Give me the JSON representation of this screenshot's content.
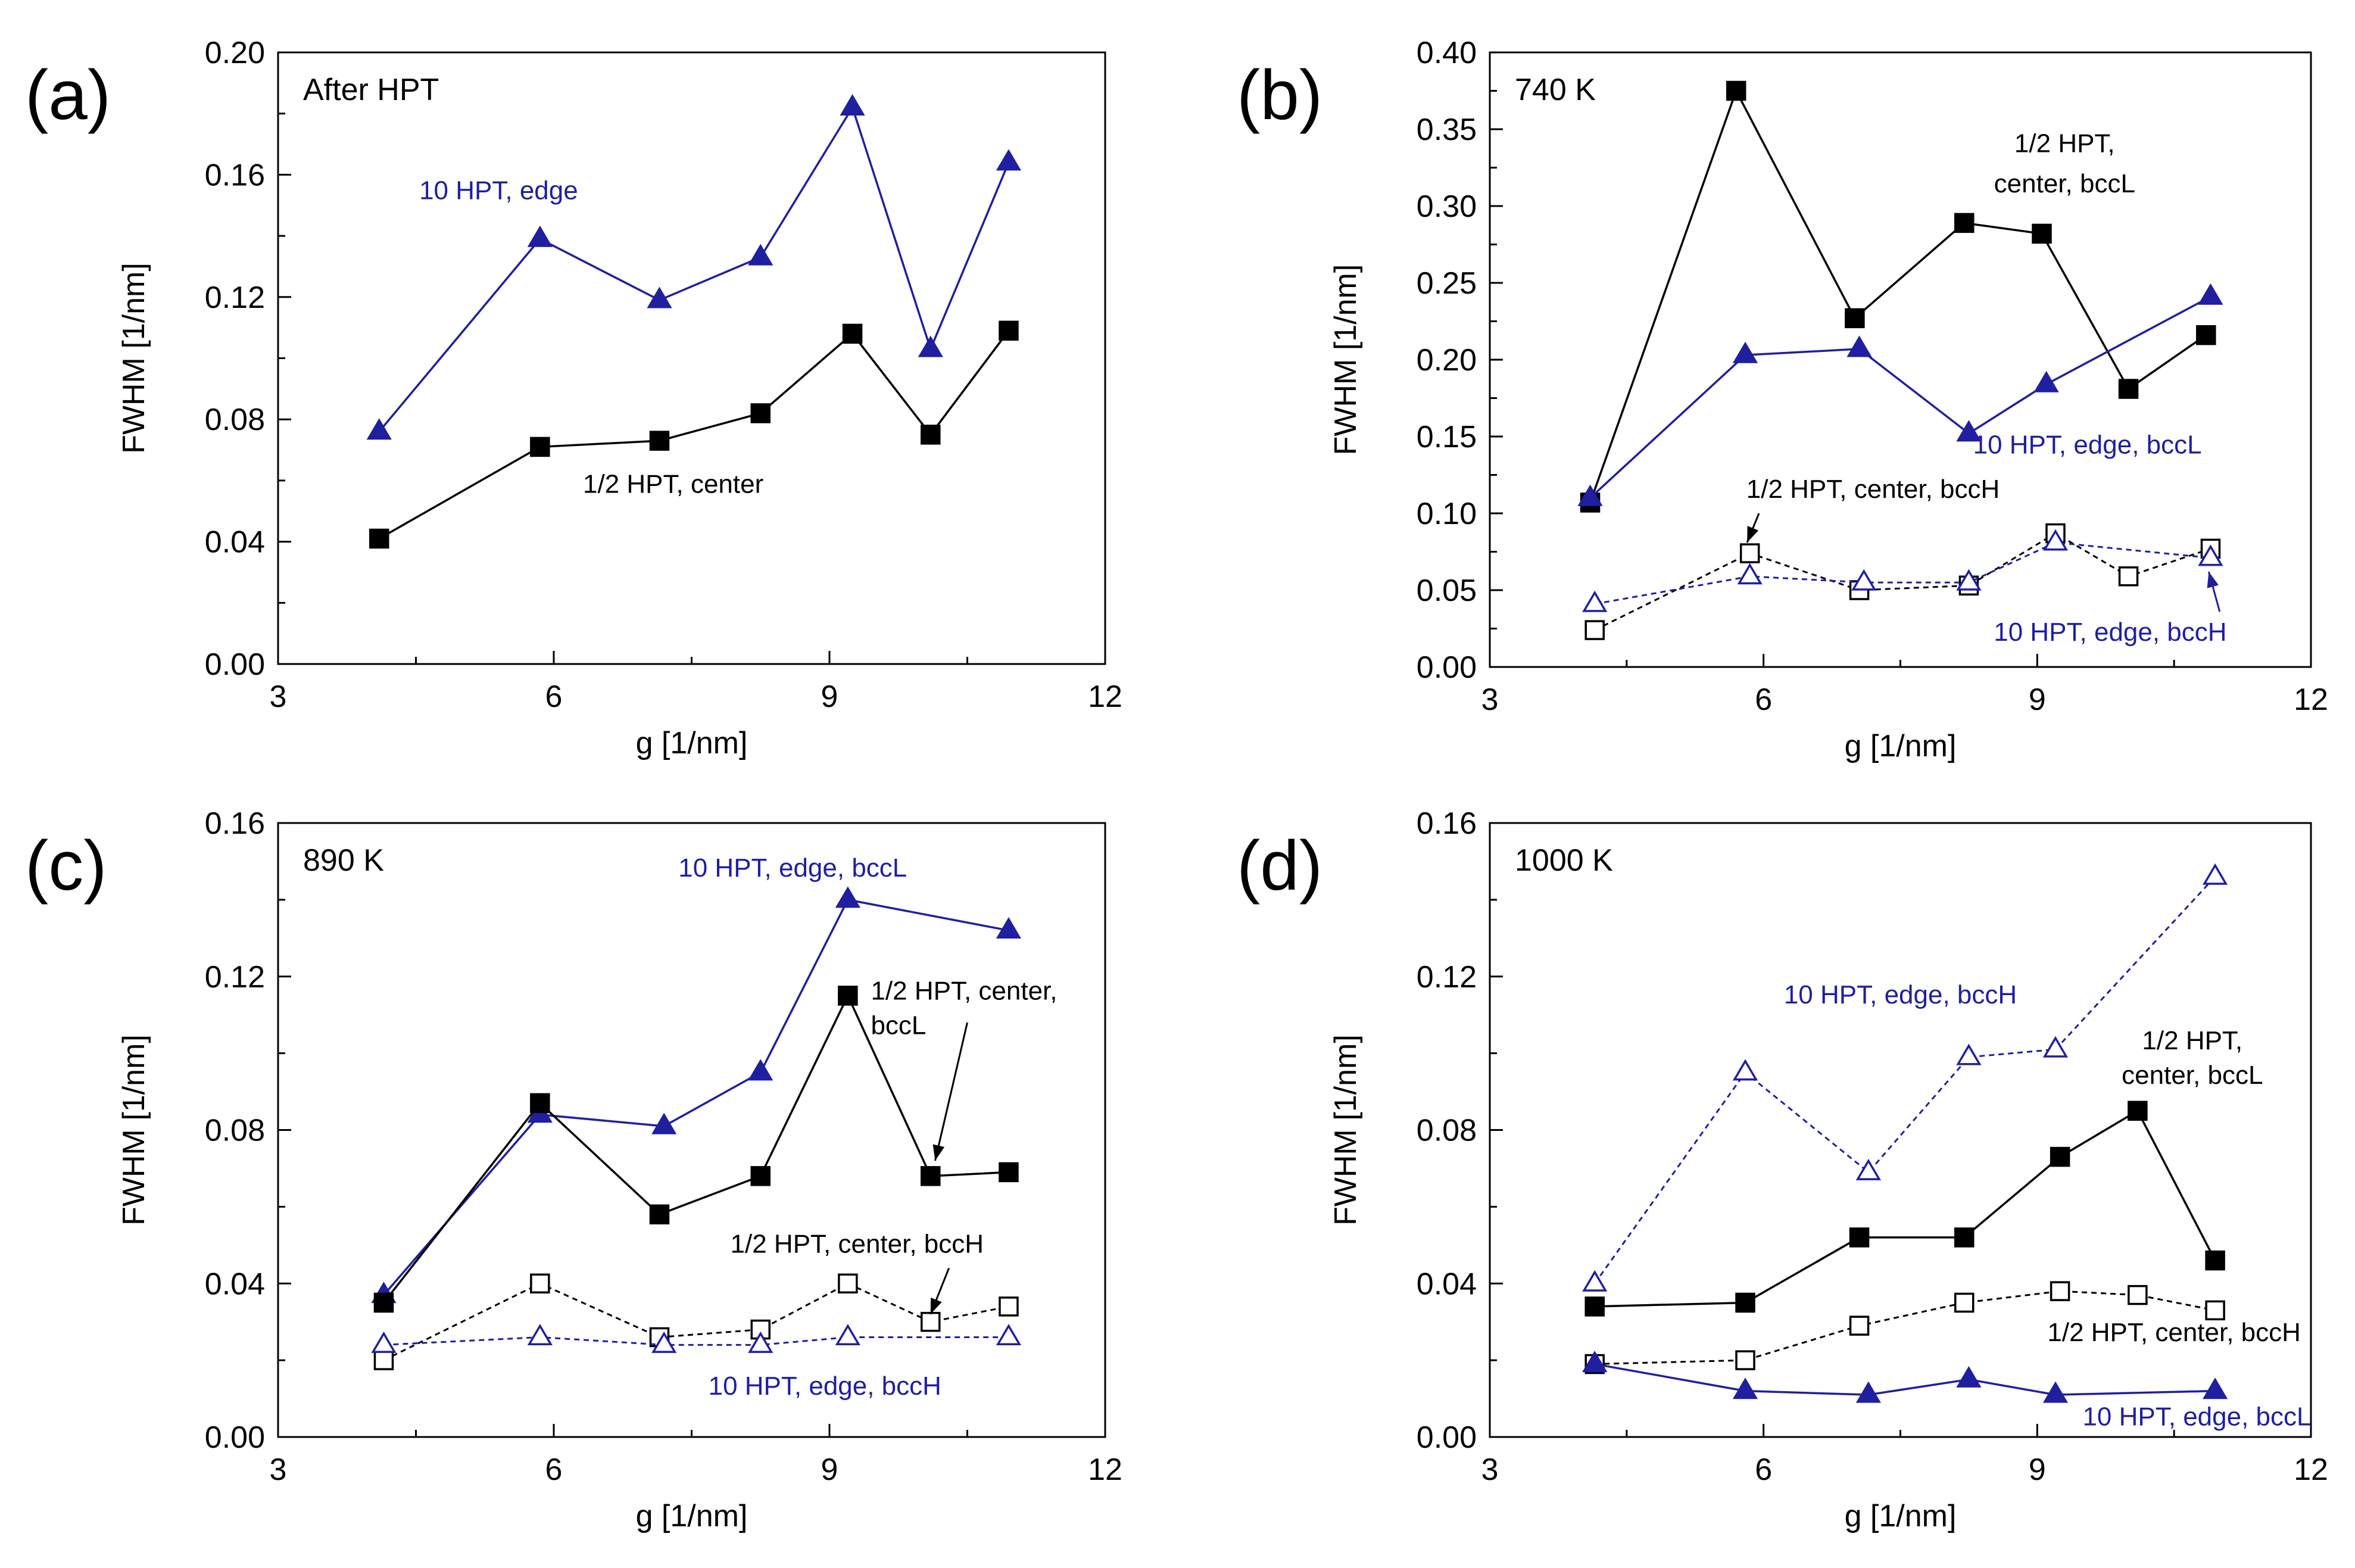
{
  "colors": {
    "blue": "#1f1fa0",
    "black": "#000000"
  },
  "chart_data": [
    {
      "type": "line",
      "panel_label": "(a)",
      "condition": "After HPT",
      "xlabel": "g [1/nm]",
      "ylabel": "FWHM [1/nm]",
      "xlim": [
        3,
        12
      ],
      "ylim": [
        0,
        0.2
      ],
      "xticks": [
        3,
        6,
        9,
        12
      ],
      "yticks": [
        0,
        0.04,
        0.08,
        0.12,
        0.16,
        0.2
      ],
      "ytick_decimals": 2,
      "series": [
        {
          "name": "10 HPT, edge",
          "marker": "triangle",
          "filled": true,
          "dashed": false,
          "color": "#1f1fa0",
          "x": [
            4.1,
            5.85,
            7.15,
            8.25,
            9.25,
            10.1,
            10.95
          ],
          "y": [
            0.076,
            0.139,
            0.119,
            0.133,
            0.182,
            0.103,
            0.164
          ]
        },
        {
          "name": "1/2 HPT, center",
          "marker": "square",
          "filled": true,
          "dashed": false,
          "color": "#000000",
          "x": [
            4.1,
            5.85,
            7.15,
            8.25,
            9.25,
            10.1,
            10.95
          ],
          "y": [
            0.041,
            0.071,
            0.073,
            0.082,
            0.108,
            0.075,
            0.109
          ]
        }
      ],
      "annotations": [
        {
          "text": "10 HPT, edge",
          "x": 5.4,
          "y": 0.152,
          "color": "#1f1fa0",
          "anchor": "middle"
        },
        {
          "text": "1/2 HPT, center",
          "x": 7.3,
          "y": 0.056,
          "color": "#000000",
          "anchor": "middle"
        }
      ]
    },
    {
      "type": "line",
      "panel_label": "(b)",
      "condition": "740 K",
      "xlabel": "g [1/nm]",
      "ylabel": "FWHM [1/nm]",
      "xlim": [
        3,
        12
      ],
      "ylim": [
        0,
        0.4
      ],
      "xticks": [
        3,
        6,
        9,
        12
      ],
      "yticks": [
        0,
        0.05,
        0.1,
        0.15,
        0.2,
        0.25,
        0.3,
        0.35,
        0.4
      ],
      "ytick_decimals": 2,
      "series": [
        {
          "name": "1/2 HPT, center, bccL",
          "marker": "square",
          "filled": true,
          "dashed": false,
          "color": "#000000",
          "x": [
            4.1,
            5.7,
            7.0,
            8.2,
            9.05,
            10.0,
            10.85
          ],
          "y": [
            0.107,
            0.375,
            0.227,
            0.289,
            0.282,
            0.181,
            0.216
          ]
        },
        {
          "name": "10 HPT, edge, bccL",
          "marker": "triangle",
          "filled": true,
          "dashed": false,
          "color": "#1f1fa0",
          "x": [
            4.1,
            5.8,
            7.05,
            8.25,
            9.1,
            10.9
          ],
          "y": [
            0.11,
            0.203,
            0.207,
            0.152,
            0.184,
            0.241
          ]
        },
        {
          "name": "1/2 HPT, center, bccH",
          "marker": "square",
          "filled": false,
          "dashed": true,
          "color": "#000000",
          "x": [
            4.15,
            5.85,
            7.05,
            8.25,
            9.2,
            10.0,
            10.9
          ],
          "y": [
            0.024,
            0.074,
            0.05,
            0.053,
            0.087,
            0.059,
            0.077
          ]
        },
        {
          "name": "10 HPT, edge, bccH",
          "marker": "triangle",
          "filled": false,
          "dashed": true,
          "color": "#1f1fa0",
          "x": [
            4.15,
            5.85,
            7.1,
            8.25,
            9.2,
            10.9
          ],
          "y": [
            0.041,
            0.059,
            0.055,
            0.055,
            0.081,
            0.071
          ]
        }
      ],
      "annotations": [
        {
          "text": "1/2 HPT,",
          "x": 9.3,
          "y": 0.335,
          "color": "#000000",
          "anchor": "middle"
        },
        {
          "text": "center, bccL",
          "x": 9.3,
          "y": 0.309,
          "color": "#000000",
          "anchor": "middle"
        },
        {
          "text": "10 HPT, edge, bccL",
          "x": 9.55,
          "y": 0.139,
          "color": "#1f1fa0",
          "anchor": "middle"
        },
        {
          "text": "1/2 HPT, center, bccH",
          "x": 7.2,
          "y": 0.11,
          "color": "#000000",
          "anchor": "middle"
        },
        {
          "text": "10 HPT, edge, bccH",
          "x": 9.8,
          "y": 0.017,
          "color": "#1f1fa0",
          "anchor": "middle"
        }
      ],
      "arrows": [
        {
          "from": [
            5.95,
            0.1
          ],
          "to": [
            5.82,
            0.081
          ],
          "color": "#000000"
        },
        {
          "from": [
            11.0,
            0.036
          ],
          "to": [
            10.88,
            0.062
          ],
          "color": "#1f1fa0"
        }
      ]
    },
    {
      "type": "line",
      "panel_label": "(c)",
      "condition": "890 K",
      "xlabel": "g [1/nm]",
      "ylabel": "FWHM [1/nm]",
      "xlim": [
        3,
        12
      ],
      "ylim": [
        0,
        0.16
      ],
      "xticks": [
        3,
        6,
        9,
        12
      ],
      "yticks": [
        0,
        0.04,
        0.08,
        0.12,
        0.16
      ],
      "ytick_decimals": 2,
      "series": [
        {
          "name": "10 HPT, edge, bccL",
          "marker": "triangle",
          "filled": true,
          "dashed": false,
          "color": "#1f1fa0",
          "x": [
            4.15,
            5.85,
            7.2,
            8.25,
            9.2,
            10.95
          ],
          "y": [
            0.037,
            0.084,
            0.081,
            0.095,
            0.14,
            0.132
          ]
        },
        {
          "name": "1/2 HPT, center, bccL",
          "marker": "square",
          "filled": true,
          "dashed": false,
          "color": "#000000",
          "x": [
            4.15,
            5.85,
            7.15,
            8.25,
            9.2,
            10.1,
            10.95
          ],
          "y": [
            0.035,
            0.087,
            0.058,
            0.068,
            0.115,
            0.068,
            0.069
          ]
        },
        {
          "name": "1/2 HPT, center, bccH",
          "marker": "square",
          "filled": false,
          "dashed": true,
          "color": "#000000",
          "x": [
            4.15,
            5.85,
            7.15,
            8.25,
            9.2,
            10.1,
            10.95
          ],
          "y": [
            0.02,
            0.04,
            0.026,
            0.028,
            0.04,
            0.03,
            0.034
          ]
        },
        {
          "name": "10 HPT, edge, bccH",
          "marker": "triangle",
          "filled": false,
          "dashed": true,
          "color": "#1f1fa0",
          "x": [
            4.15,
            5.85,
            7.2,
            8.25,
            9.2,
            10.95
          ],
          "y": [
            0.024,
            0.026,
            0.024,
            0.024,
            0.026,
            0.026
          ]
        }
      ],
      "annotations": [
        {
          "text": "10 HPT, edge, bccL",
          "x": 8.6,
          "y": 0.146,
          "color": "#1f1fa0",
          "anchor": "middle"
        },
        {
          "text": "1/2 HPT, center,",
          "x": 9.45,
          "y": 0.114,
          "color": "#000000",
          "anchor": "start"
        },
        {
          "text": "bccL",
          "x": 9.45,
          "y": 0.105,
          "color": "#000000",
          "anchor": "start"
        },
        {
          "text": "1/2 HPT, center, bccH",
          "x": 9.3,
          "y": 0.048,
          "color": "#000000",
          "anchor": "middle"
        },
        {
          "text": "10 HPT, edge, bccH",
          "x": 8.95,
          "y": 0.011,
          "color": "#1f1fa0",
          "anchor": "middle"
        }
      ],
      "arrows": [
        {
          "from": [
            10.5,
            0.108
          ],
          "to": [
            10.15,
            0.072
          ],
          "color": "#000000"
        },
        {
          "from": [
            10.3,
            0.044
          ],
          "to": [
            10.1,
            0.032
          ],
          "color": "#000000"
        }
      ]
    },
    {
      "type": "line",
      "panel_label": "(d)",
      "condition": "1000 K",
      "xlabel": "g [1/nm]",
      "ylabel": "FWHM [1/nm]",
      "xlim": [
        3,
        12
      ],
      "ylim": [
        0,
        0.16
      ],
      "xticks": [
        3,
        6,
        9,
        12
      ],
      "yticks": [
        0,
        0.04,
        0.08,
        0.12,
        0.16
      ],
      "ytick_decimals": 2,
      "series": [
        {
          "name": "10 HPT, edge, bccH",
          "marker": "triangle",
          "filled": false,
          "dashed": true,
          "color": "#1f1fa0",
          "x": [
            4.15,
            5.8,
            7.15,
            8.25,
            9.2,
            10.95
          ],
          "y": [
            0.04,
            0.095,
            0.069,
            0.099,
            0.101,
            0.146
          ]
        },
        {
          "name": "1/2 HPT, center, bccL",
          "marker": "square",
          "filled": true,
          "dashed": false,
          "color": "#000000",
          "x": [
            4.15,
            5.8,
            7.05,
            8.2,
            9.25,
            10.1,
            10.95
          ],
          "y": [
            0.034,
            0.035,
            0.052,
            0.052,
            0.073,
            0.085,
            0.046
          ]
        },
        {
          "name": "1/2 HPT, center, bccH",
          "marker": "square",
          "filled": false,
          "dashed": true,
          "color": "#000000",
          "x": [
            4.15,
            5.8,
            7.05,
            8.2,
            9.25,
            10.1,
            10.95
          ],
          "y": [
            0.019,
            0.02,
            0.029,
            0.035,
            0.038,
            0.037,
            0.033
          ]
        },
        {
          "name": "10 HPT, edge, bccL",
          "marker": "triangle",
          "filled": true,
          "dashed": false,
          "color": "#1f1fa0",
          "x": [
            4.15,
            5.8,
            7.15,
            8.25,
            9.2,
            10.95
          ],
          "y": [
            0.019,
            0.012,
            0.011,
            0.015,
            0.011,
            0.012
          ]
        }
      ],
      "annotations": [
        {
          "text": "10 HPT, edge, bccH",
          "x": 7.5,
          "y": 0.113,
          "color": "#1f1fa0",
          "anchor": "middle"
        },
        {
          "text": "1/2 HPT,",
          "x": 10.7,
          "y": 0.101,
          "color": "#000000",
          "anchor": "middle"
        },
        {
          "text": "center, bccL",
          "x": 10.7,
          "y": 0.092,
          "color": "#000000",
          "anchor": "middle"
        },
        {
          "text": "1/2 HPT, center, bccH",
          "x": 10.5,
          "y": 0.025,
          "color": "#000000",
          "anchor": "middle"
        },
        {
          "text": "10 HPT, edge, bccL",
          "x": 10.75,
          "y": 0.003,
          "color": "#1f1fa0",
          "anchor": "middle"
        }
      ]
    }
  ]
}
